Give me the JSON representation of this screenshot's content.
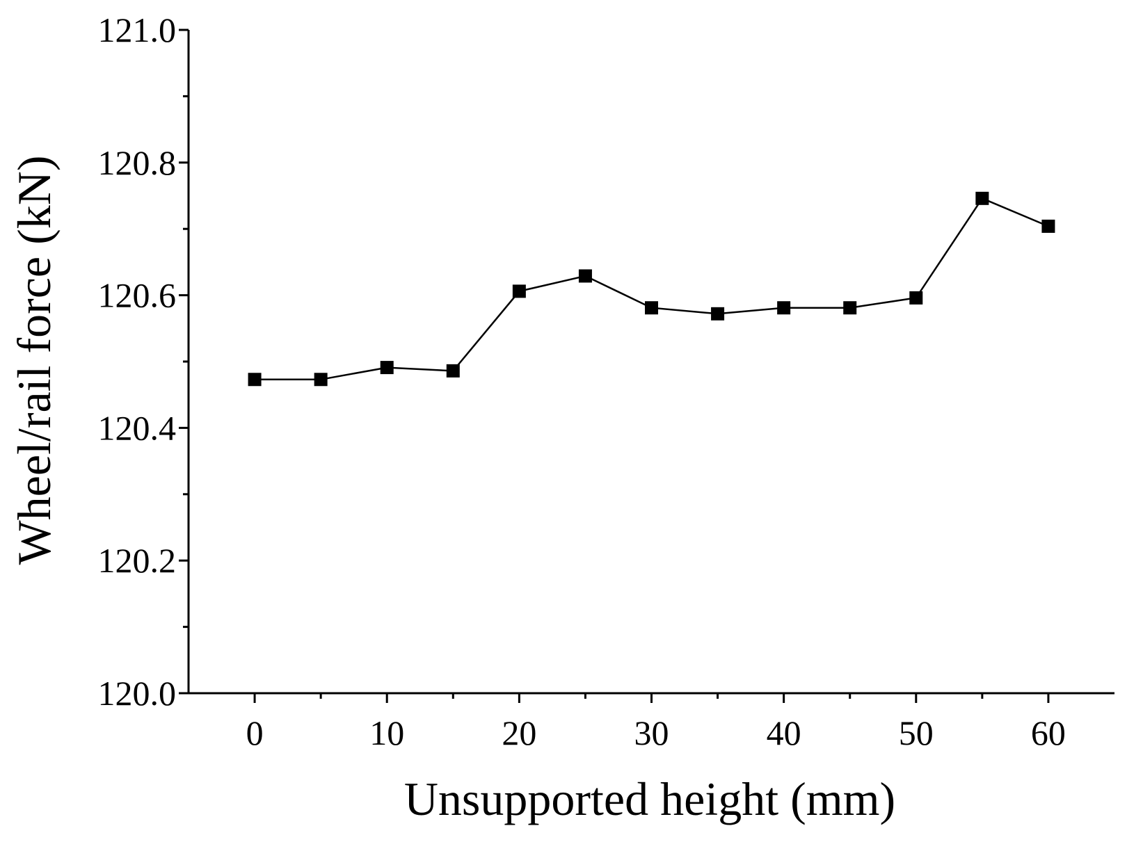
{
  "chart_data": {
    "type": "line",
    "title": "",
    "xlabel": "Unsupported height (mm)",
    "ylabel": "Wheel/rail force (kN)",
    "xlim": [
      -5,
      65
    ],
    "ylim": [
      120.0,
      121.0
    ],
    "x_ticks": [
      0,
      10,
      20,
      30,
      40,
      50,
      60
    ],
    "x_tick_labels": [
      "0",
      "10",
      "20",
      "30",
      "40",
      "50",
      "60"
    ],
    "x_minor_ticks": [
      5,
      15,
      25,
      35,
      45,
      55
    ],
    "y_ticks": [
      120.0,
      120.2,
      120.4,
      120.6,
      120.8,
      121.0
    ],
    "y_tick_labels": [
      "120.0",
      "120.2",
      "120.4",
      "120.6",
      "120.8",
      "121.0"
    ],
    "y_minor_ticks": [
      120.1,
      120.3,
      120.5,
      120.7,
      120.9
    ],
    "grid": false,
    "legend": "none",
    "series": [
      {
        "name": "Wheel/rail force",
        "marker": "square",
        "color": "#000000",
        "x": [
          0,
          5,
          10,
          15,
          20,
          25,
          30,
          35,
          40,
          45,
          50,
          55,
          60
        ],
        "y": [
          120.473,
          120.473,
          120.491,
          120.486,
          120.606,
          120.629,
          120.581,
          120.572,
          120.581,
          120.581,
          120.596,
          120.746,
          120.704
        ]
      }
    ]
  }
}
